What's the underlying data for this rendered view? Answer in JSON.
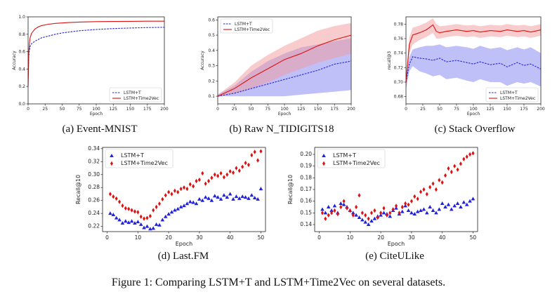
{
  "figure_caption": "Figure 1:  Comparing LSTM+T and LSTM+Time2Vec on several datasets.",
  "colors": {
    "lstm_t": "#2222dd",
    "time2vec": "#dd1111",
    "band_t": "#8c8cf2",
    "band_v": "#f29a9a"
  },
  "panels": [
    {
      "key": "a",
      "caption": "(a) Event-MNIST"
    },
    {
      "key": "b",
      "caption": "(b) Raw N_TIDIGITS18"
    },
    {
      "key": "c",
      "caption": "(c) Stack Overflow"
    },
    {
      "key": "d",
      "caption": "(d) Last.FM"
    },
    {
      "key": "e",
      "caption": "(e) CiteULike"
    }
  ],
  "chart_data": [
    {
      "id": "a",
      "type": "line",
      "xlabel": "Epoch",
      "ylabel": "Accuracy",
      "xlim": [
        0,
        200
      ],
      "ylim": [
        0.0,
        1.0
      ],
      "xticks": [
        0,
        25,
        50,
        75,
        100,
        125,
        150,
        175,
        200
      ],
      "yticks": [
        0.0,
        0.2,
        0.4,
        0.6,
        0.8,
        1.0
      ],
      "legend_loc": "lower-right",
      "series": [
        {
          "name": "LSTM+T",
          "style": "dashed",
          "x": [
            0,
            1,
            2,
            3,
            5,
            10,
            15,
            20,
            30,
            40,
            50,
            60,
            75,
            100,
            125,
            150,
            175,
            200
          ],
          "y": [
            0.3,
            0.55,
            0.62,
            0.66,
            0.69,
            0.72,
            0.74,
            0.76,
            0.78,
            0.8,
            0.815,
            0.825,
            0.84,
            0.855,
            0.865,
            0.872,
            0.877,
            0.88
          ]
        },
        {
          "name": "LSTM+Time2Vec",
          "style": "solid",
          "x": [
            0,
            1,
            2,
            3,
            5,
            10,
            15,
            20,
            30,
            40,
            50,
            60,
            75,
            100,
            125,
            150,
            175,
            200
          ],
          "y": [
            0.2,
            0.6,
            0.7,
            0.76,
            0.81,
            0.86,
            0.885,
            0.9,
            0.915,
            0.925,
            0.93,
            0.935,
            0.94,
            0.945,
            0.947,
            0.948,
            0.95,
            0.95
          ]
        }
      ]
    },
    {
      "id": "b",
      "type": "line",
      "xlabel": "Epoch",
      "ylabel": "Accuracy",
      "xlim": [
        0,
        200
      ],
      "ylim": [
        0.05,
        0.62
      ],
      "xticks": [
        0,
        25,
        50,
        75,
        100,
        125,
        150,
        175,
        200
      ],
      "yticks": [
        0.1,
        0.2,
        0.3,
        0.4,
        0.5,
        0.6
      ],
      "legend_loc": "top-left",
      "series": [
        {
          "name": "LSTM+T",
          "style": "dashed",
          "x": [
            0,
            25,
            50,
            75,
            100,
            125,
            150,
            175,
            200
          ],
          "y": [
            0.1,
            0.12,
            0.15,
            0.18,
            0.21,
            0.24,
            0.27,
            0.31,
            0.33
          ],
          "lower": [
            0.1,
            0.1,
            0.1,
            0.1,
            0.1,
            0.11,
            0.12,
            0.13,
            0.14
          ],
          "upper": [
            0.11,
            0.17,
            0.26,
            0.33,
            0.38,
            0.42,
            0.44,
            0.46,
            0.48
          ]
        },
        {
          "name": "LSTM+Time2Vec",
          "style": "solid",
          "x": [
            0,
            25,
            50,
            75,
            100,
            125,
            150,
            175,
            200
          ],
          "y": [
            0.1,
            0.15,
            0.22,
            0.28,
            0.34,
            0.38,
            0.43,
            0.47,
            0.5
          ],
          "lower": [
            0.1,
            0.12,
            0.15,
            0.19,
            0.24,
            0.28,
            0.32,
            0.35,
            0.38
          ],
          "upper": [
            0.11,
            0.19,
            0.3,
            0.37,
            0.43,
            0.48,
            0.53,
            0.56,
            0.58
          ]
        }
      ]
    },
    {
      "id": "c",
      "type": "line",
      "xlabel": "Epoch",
      "ylabel": "recall@3",
      "xlim": [
        0,
        200
      ],
      "ylim": [
        0.67,
        0.79
      ],
      "xticks": [
        0,
        25,
        50,
        75,
        100,
        125,
        150,
        175,
        200
      ],
      "yticks": [
        0.68,
        0.7,
        0.72,
        0.74,
        0.76,
        0.78
      ],
      "legend_loc": "bottom-right",
      "series": [
        {
          "name": "LSTM+T",
          "style": "dashed",
          "x": [
            0,
            5,
            10,
            20,
            30,
            40,
            50,
            60,
            75,
            90,
            100,
            110,
            125,
            140,
            150,
            165,
            175,
            185,
            200
          ],
          "y": [
            0.7,
            0.725,
            0.735,
            0.733,
            0.732,
            0.73,
            0.733,
            0.728,
            0.73,
            0.727,
            0.725,
            0.728,
            0.724,
            0.726,
            0.721,
            0.727,
            0.723,
            0.725,
            0.718
          ],
          "lower": [
            0.69,
            0.715,
            0.722,
            0.715,
            0.712,
            0.708,
            0.71,
            0.704,
            0.706,
            0.702,
            0.7,
            0.704,
            0.7,
            0.7,
            0.695,
            0.7,
            0.698,
            0.7,
            0.694
          ],
          "upper": [
            0.71,
            0.735,
            0.745,
            0.748,
            0.75,
            0.75,
            0.752,
            0.748,
            0.75,
            0.748,
            0.746,
            0.75,
            0.746,
            0.748,
            0.744,
            0.748,
            0.745,
            0.748,
            0.74
          ]
        },
        {
          "name": "LSTM+Time2Vec",
          "style": "solid",
          "x": [
            0,
            5,
            10,
            20,
            30,
            40,
            45,
            50,
            60,
            75,
            90,
            100,
            110,
            125,
            140,
            150,
            165,
            175,
            185,
            200
          ],
          "y": [
            0.7,
            0.752,
            0.765,
            0.768,
            0.772,
            0.779,
            0.77,
            0.768,
            0.77,
            0.772,
            0.77,
            0.771,
            0.769,
            0.771,
            0.77,
            0.772,
            0.77,
            0.771,
            0.769,
            0.772
          ],
          "lower": [
            0.69,
            0.74,
            0.752,
            0.758,
            0.762,
            0.768,
            0.76,
            0.76,
            0.762,
            0.764,
            0.762,
            0.763,
            0.761,
            0.763,
            0.762,
            0.764,
            0.762,
            0.763,
            0.761,
            0.764
          ],
          "upper": [
            0.71,
            0.762,
            0.775,
            0.778,
            0.782,
            0.788,
            0.78,
            0.777,
            0.778,
            0.78,
            0.778,
            0.779,
            0.777,
            0.779,
            0.778,
            0.78,
            0.778,
            0.779,
            0.777,
            0.78
          ]
        }
      ]
    },
    {
      "id": "d",
      "type": "scatter",
      "xlabel": "Epoch",
      "ylabel": "Recall@10",
      "xlim": [
        -1.5,
        51.5
      ],
      "ylim": [
        0.212,
        0.342
      ],
      "xticks": [
        0,
        10,
        20,
        30,
        40,
        50
      ],
      "yticks": [
        0.22,
        0.24,
        0.26,
        0.28,
        0.3,
        0.32,
        0.34
      ],
      "legend_loc": "top-left",
      "series": [
        {
          "name": "LSTM+T",
          "marker": "triangle",
          "x": [
            1,
            2,
            3,
            4,
            5,
            6,
            7,
            8,
            9,
            10,
            11,
            12,
            13,
            14,
            15,
            16,
            17,
            18,
            19,
            20,
            21,
            22,
            23,
            24,
            25,
            26,
            27,
            28,
            29,
            30,
            31,
            32,
            33,
            34,
            35,
            36,
            37,
            38,
            39,
            40,
            41,
            42,
            43,
            44,
            45,
            46,
            47,
            48,
            49,
            50
          ],
          "y": [
            0.24,
            0.238,
            0.233,
            0.23,
            0.225,
            0.228,
            0.226,
            0.228,
            0.225,
            0.227,
            0.223,
            0.218,
            0.22,
            0.216,
            0.217,
            0.223,
            0.222,
            0.23,
            0.235,
            0.239,
            0.242,
            0.245,
            0.247,
            0.25,
            0.252,
            0.255,
            0.258,
            0.257,
            0.255,
            0.262,
            0.26,
            0.265,
            0.263,
            0.26,
            0.267,
            0.265,
            0.262,
            0.268,
            0.265,
            0.27,
            0.262,
            0.266,
            0.263,
            0.266,
            0.265,
            0.263,
            0.268,
            0.264,
            0.262,
            0.278
          ]
        },
        {
          "name": "LSTM+Time2Vec",
          "marker": "diamond",
          "x": [
            1,
            2,
            3,
            4,
            5,
            6,
            7,
            8,
            9,
            10,
            11,
            12,
            13,
            14,
            15,
            16,
            17,
            18,
            19,
            20,
            21,
            22,
            23,
            24,
            25,
            26,
            27,
            28,
            29,
            30,
            31,
            32,
            33,
            34,
            35,
            36,
            37,
            38,
            39,
            40,
            41,
            42,
            43,
            44,
            45,
            46,
            47,
            48,
            49,
            50
          ],
          "y": [
            0.27,
            0.266,
            0.263,
            0.258,
            0.252,
            0.248,
            0.247,
            0.245,
            0.243,
            0.242,
            0.235,
            0.232,
            0.233,
            0.236,
            0.245,
            0.25,
            0.255,
            0.262,
            0.268,
            0.273,
            0.27,
            0.275,
            0.273,
            0.278,
            0.28,
            0.278,
            0.285,
            0.282,
            0.29,
            0.292,
            0.302,
            0.286,
            0.29,
            0.295,
            0.3,
            0.298,
            0.302,
            0.296,
            0.3,
            0.305,
            0.303,
            0.31,
            0.306,
            0.312,
            0.318,
            0.315,
            0.33,
            0.335,
            0.322,
            0.336
          ]
        }
      ]
    },
    {
      "id": "e",
      "type": "scatter",
      "xlabel": "Epoch",
      "ylabel": "Recall@10",
      "xlim": [
        -1.5,
        51.5
      ],
      "ylim": [
        0.134,
        0.206
      ],
      "xticks": [
        0,
        10,
        20,
        30,
        40,
        50
      ],
      "yticks": [
        0.14,
        0.15,
        0.16,
        0.17,
        0.18,
        0.19,
        0.2
      ],
      "legend_loc": "top-left",
      "series": [
        {
          "name": "LSTM+T",
          "marker": "triangle",
          "x": [
            1,
            2,
            3,
            4,
            5,
            6,
            7,
            8,
            9,
            10,
            11,
            12,
            13,
            14,
            15,
            16,
            17,
            18,
            19,
            20,
            21,
            22,
            23,
            24,
            25,
            26,
            27,
            28,
            29,
            30,
            31,
            32,
            33,
            34,
            35,
            36,
            37,
            38,
            39,
            40,
            41,
            42,
            43,
            44,
            45,
            46,
            47,
            48,
            49,
            50
          ],
          "y": [
            0.153,
            0.15,
            0.155,
            0.152,
            0.156,
            0.15,
            0.158,
            0.157,
            0.155,
            0.152,
            0.15,
            0.148,
            0.146,
            0.144,
            0.142,
            0.14,
            0.143,
            0.145,
            0.147,
            0.148,
            0.15,
            0.149,
            0.147,
            0.152,
            0.154,
            0.149,
            0.151,
            0.156,
            0.152,
            0.15,
            0.149,
            0.151,
            0.152,
            0.153,
            0.15,
            0.155,
            0.152,
            0.15,
            0.153,
            0.158,
            0.155,
            0.157,
            0.153,
            0.156,
            0.158,
            0.155,
            0.159,
            0.157,
            0.16,
            0.162
          ]
        },
        {
          "name": "LSTM+Time2Vec",
          "marker": "diamond",
          "x": [
            1,
            2,
            3,
            4,
            5,
            6,
            7,
            8,
            9,
            10,
            11,
            12,
            13,
            14,
            15,
            16,
            17,
            18,
            19,
            20,
            21,
            22,
            23,
            24,
            25,
            26,
            27,
            28,
            29,
            30,
            31,
            32,
            33,
            34,
            35,
            36,
            37,
            38,
            39,
            40,
            41,
            42,
            43,
            44,
            45,
            46,
            47,
            48,
            49,
            50
          ],
          "y": [
            0.15,
            0.145,
            0.148,
            0.15,
            0.152,
            0.149,
            0.155,
            0.16,
            0.154,
            0.152,
            0.148,
            0.155,
            0.165,
            0.15,
            0.148,
            0.145,
            0.15,
            0.152,
            0.146,
            0.15,
            0.154,
            0.148,
            0.15,
            0.153,
            0.156,
            0.15,
            0.155,
            0.158,
            0.157,
            0.16,
            0.164,
            0.162,
            0.168,
            0.17,
            0.166,
            0.172,
            0.175,
            0.17,
            0.178,
            0.176,
            0.182,
            0.188,
            0.185,
            0.19,
            0.187,
            0.192,
            0.196,
            0.198,
            0.2,
            0.201
          ]
        }
      ]
    }
  ]
}
